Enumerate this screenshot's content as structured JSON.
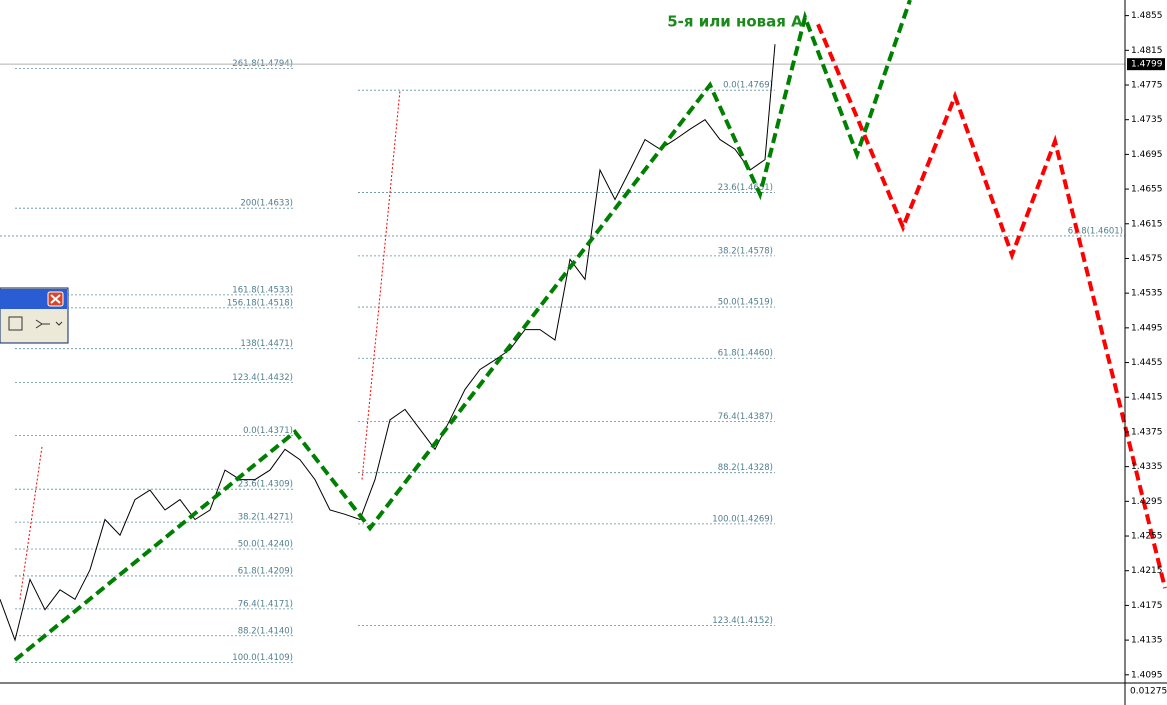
{
  "chart_data": {
    "type": "line",
    "annotation": "5-я или новая А",
    "xlim": [
      0,
      1125
    ],
    "ylim": [
      1.4089,
      1.4873
    ],
    "yticks": [
      1.4855,
      1.4815,
      1.4775,
      1.4735,
      1.4695,
      1.4655,
      1.4615,
      1.4575,
      1.4535,
      1.4495,
      1.4455,
      1.4415,
      1.4375,
      1.4335,
      1.4295,
      1.4255,
      1.4215,
      1.4175,
      1.4135,
      1.4095
    ],
    "current_price": 1.4799,
    "indicator_label": "0.01275",
    "series": [
      {
        "color": "#000000",
        "style": "solid",
        "x": [
          0,
          15,
          30,
          45,
          60,
          75,
          90,
          105,
          120,
          135,
          150,
          165,
          180,
          195,
          210,
          225,
          240,
          255,
          270,
          285,
          300,
          315,
          330,
          345,
          360,
          375,
          390,
          405,
          420,
          435,
          450,
          465,
          480,
          495,
          510,
          525,
          540,
          555,
          570,
          585,
          600,
          615,
          630,
          645,
          660,
          675,
          690,
          705,
          720,
          735,
          750,
          765,
          775
        ],
        "values": [
          1.4182,
          1.4135,
          1.4205,
          1.417,
          1.4193,
          1.4182,
          1.4216,
          1.4274,
          1.4256,
          1.4297,
          1.4308,
          1.4285,
          1.4297,
          1.4274,
          1.4285,
          1.4331,
          1.432,
          1.432,
          1.4331,
          1.4355,
          1.4343,
          1.432,
          1.4285,
          1.428,
          1.4274,
          1.432,
          1.4389,
          1.4401,
          1.4378,
          1.4355,
          1.4389,
          1.4424,
          1.4447,
          1.4458,
          1.447,
          1.4493,
          1.4493,
          1.4481,
          1.4574,
          1.4551,
          1.4677,
          1.4643,
          1.4677,
          1.4712,
          1.4701,
          1.4712,
          1.4724,
          1.4735,
          1.4712,
          1.4701,
          1.4677,
          1.4689,
          1.4822
        ]
      },
      {
        "color": "#008000",
        "style": "dashed",
        "x": [
          15,
          295,
          370,
          710,
          760,
          805,
          857,
          910
        ],
        "values": [
          1.4112,
          1.4375,
          1.4264,
          1.4775,
          1.4649,
          1.4853,
          1.4695,
          1.4873
        ]
      },
      {
        "color": "#ff0000",
        "style": "dashed",
        "x": [
          818,
          903,
          955,
          1012,
          1055,
          1165
        ],
        "values": [
          1.4845,
          1.4611,
          1.4762,
          1.4579,
          1.471,
          1.4195
        ]
      },
      {
        "color": "#ff0000",
        "style": "dotted",
        "x": [
          20,
          42
        ],
        "values": [
          1.4182,
          1.4358
        ]
      },
      {
        "color": "#ff0000",
        "style": "dotted",
        "x": [
          362,
          400
        ],
        "values": [
          1.432,
          1.4769
        ]
      }
    ],
    "fib_sets": [
      {
        "x": [
          15,
          295
        ],
        "levels": [
          {
            "value": 1.4794,
            "label": "261.8(1.4794)"
          },
          {
            "value": 1.4633,
            "label": "200(1.4633)"
          },
          {
            "value": 1.4533,
            "label": "161.8(1.4533)"
          },
          {
            "value": 1.4518,
            "label": "156.18(1.4518)"
          },
          {
            "value": 1.4471,
            "label": "138(1.4471)"
          },
          {
            "value": 1.4432,
            "label": "123.4(1.4432)"
          }
        ]
      },
      {
        "x": [
          15,
          295
        ],
        "levels": [
          {
            "value": 1.4371,
            "label": "0.0(1.4371)"
          },
          {
            "value": 1.4309,
            "label": "23.6(1.4309)"
          },
          {
            "value": 1.4271,
            "label": "38.2(1.4271)"
          },
          {
            "value": 1.424,
            "label": "50.0(1.4240)"
          },
          {
            "value": 1.4209,
            "label": "61.8(1.4209)"
          },
          {
            "value": 1.4171,
            "label": "76.4(1.4171)"
          },
          {
            "value": 1.414,
            "label": "88.2(1.4140)"
          },
          {
            "value": 1.4109,
            "label": "100.0(1.4109)"
          }
        ]
      },
      {
        "x": [
          358,
          775
        ],
        "levels": [
          {
            "value": 1.4769,
            "label": "0.0(1.4769)"
          },
          {
            "value": 1.4651,
            "label": "23.6(1.4651)"
          },
          {
            "value": 1.4578,
            "label": "38.2(1.4578)"
          },
          {
            "value": 1.4519,
            "label": "50.0(1.4519)"
          },
          {
            "value": 1.446,
            "label": "61.8(1.4460)"
          },
          {
            "value": 1.4387,
            "label": "76.4(1.4387)"
          },
          {
            "value": 1.4328,
            "label": "88.2(1.4328)"
          },
          {
            "value": 1.4269,
            "label": "100.0(1.4269)"
          },
          {
            "value": 1.4152,
            "label": "123.4(1.4152)"
          }
        ]
      },
      {
        "x": [
          0,
          1125
        ],
        "levels": [
          {
            "value": 1.4601,
            "label": "61.8(1.4601)"
          }
        ]
      }
    ]
  }
}
